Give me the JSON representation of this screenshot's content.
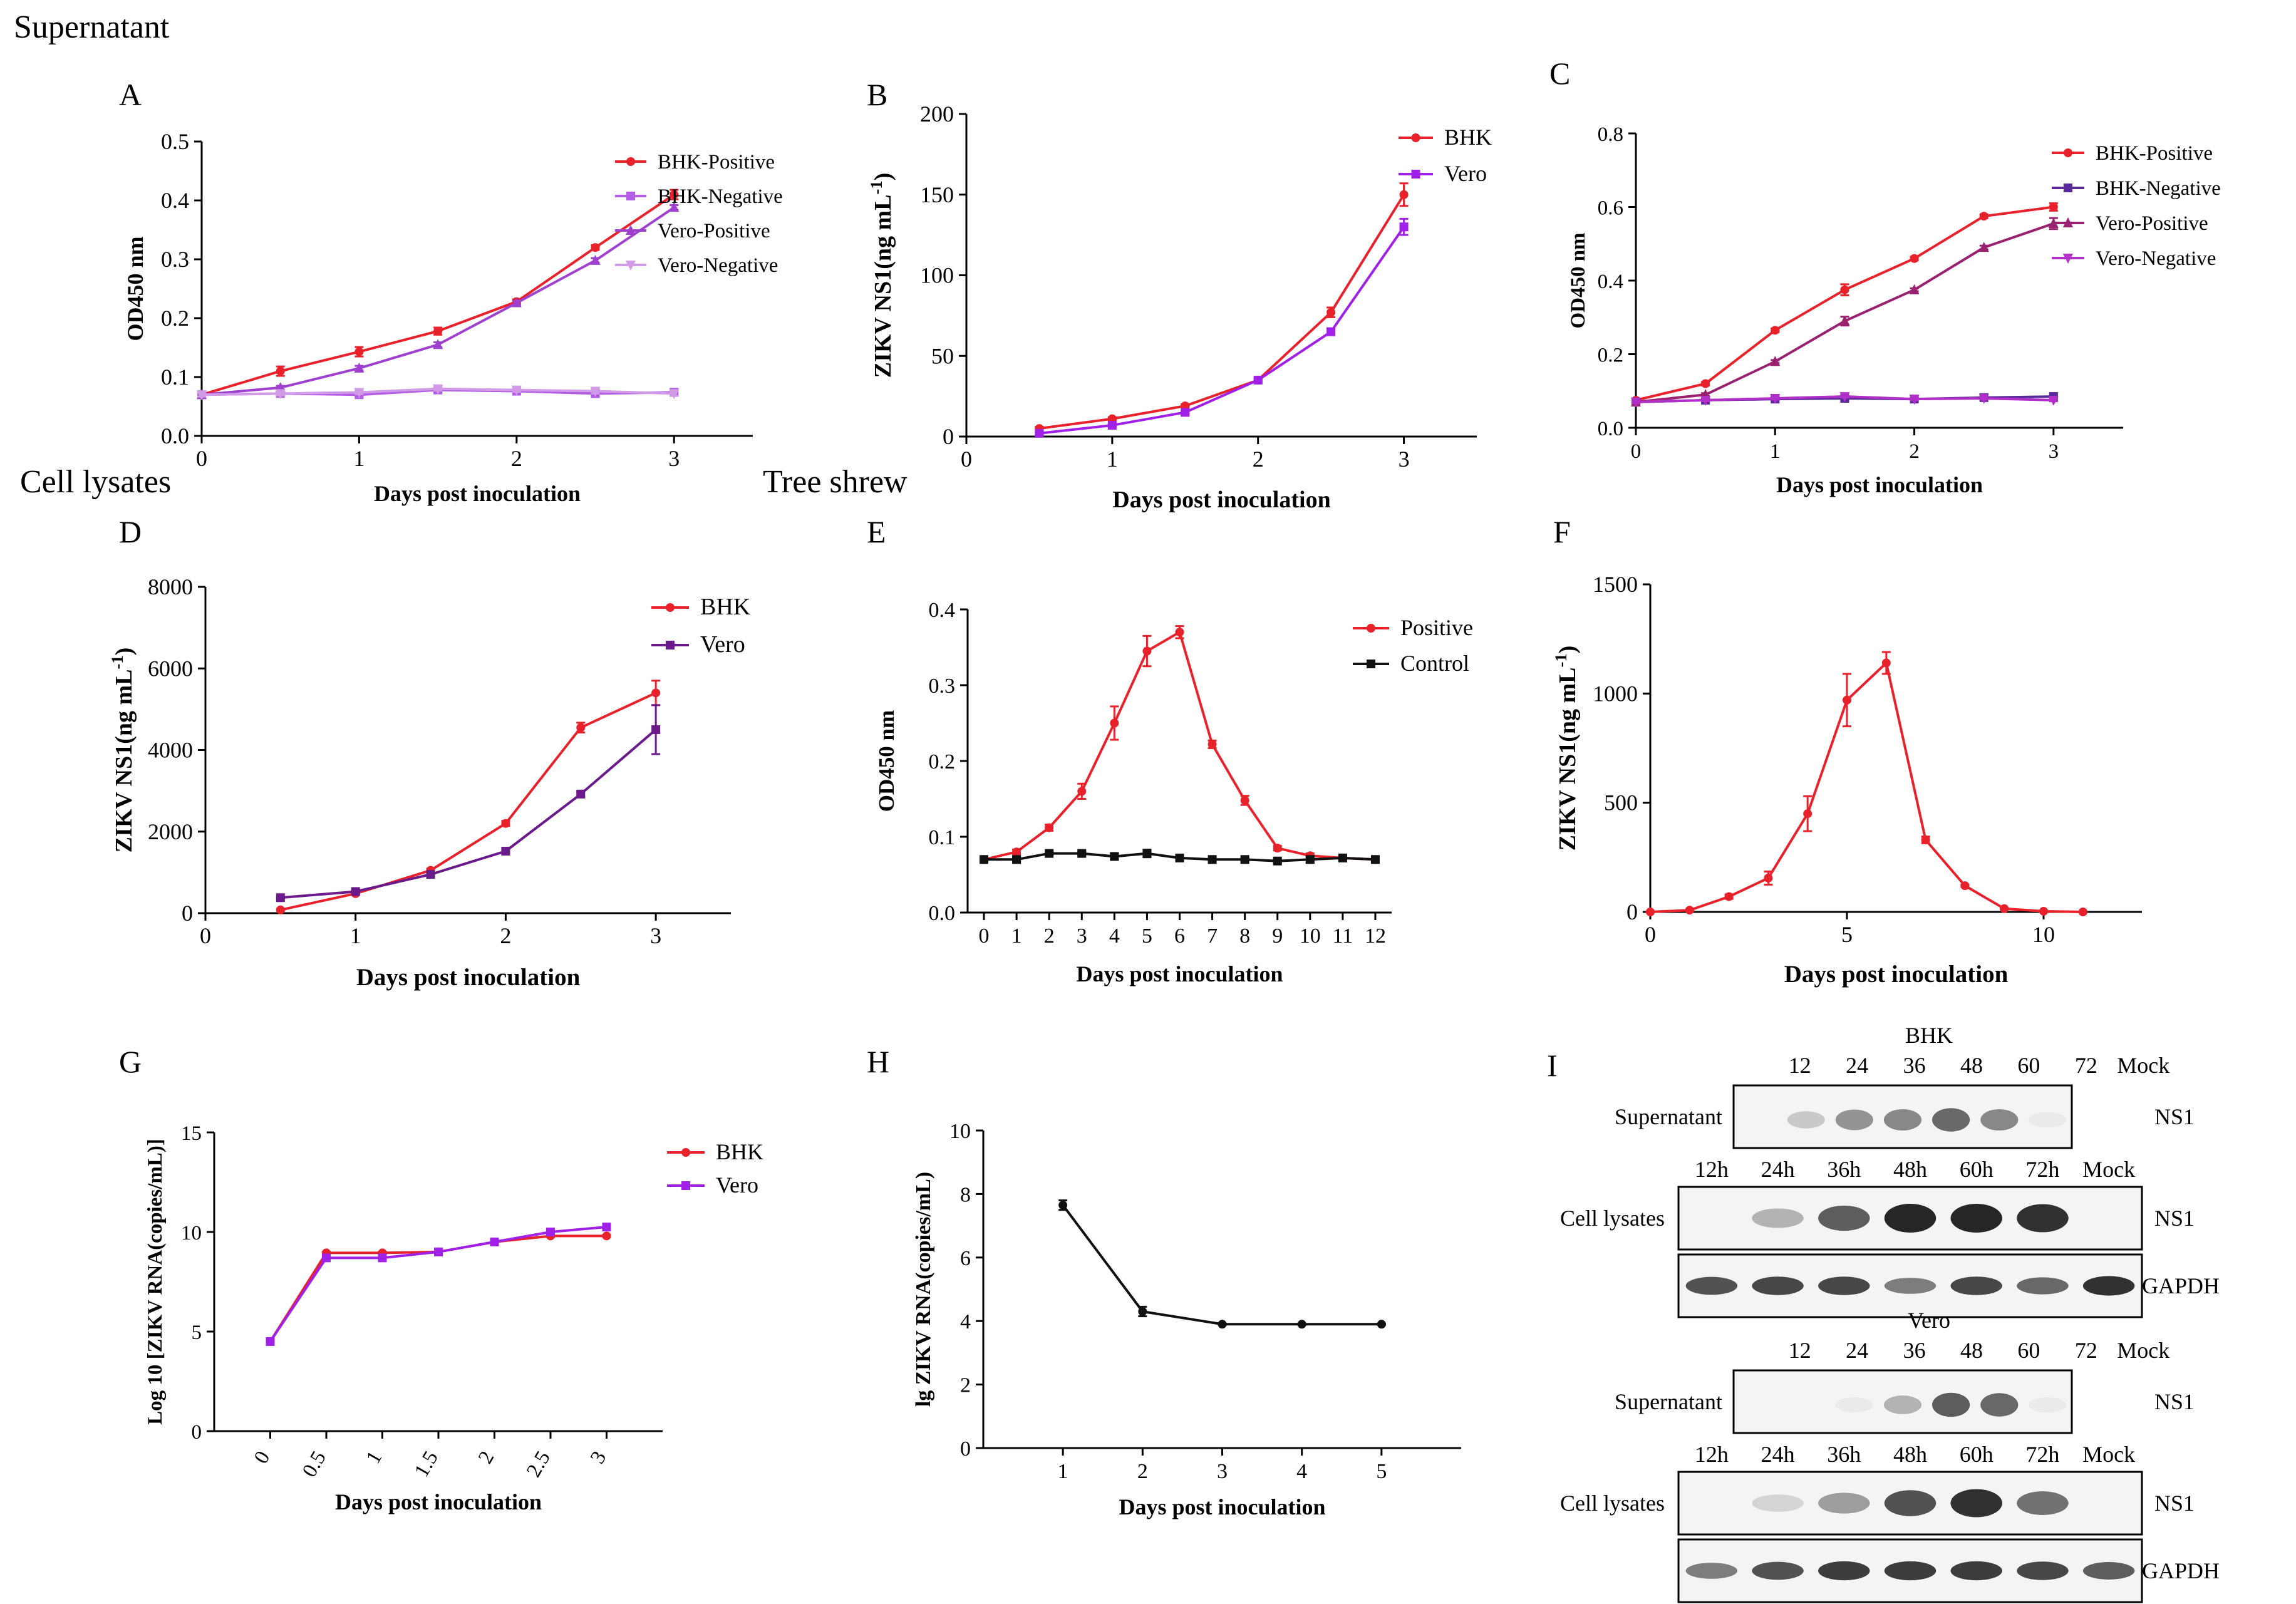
{
  "section_labels": {
    "supernatant": "Supernatant",
    "cell_lysates": "Cell lysates",
    "tree_shrew": "Tree shrew"
  },
  "chart_data": [
    {
      "id": "A",
      "panel": "A",
      "type": "line",
      "title": "",
      "xlabel": "Days post inoculation",
      "ylabel": "OD450 nm",
      "xlim": [
        0,
        3.5
      ],
      "ylim": [
        0,
        0.5
      ],
      "xticks": [
        0,
        1,
        2,
        3
      ],
      "xtick_labels": [
        "0",
        "1",
        "2",
        "3"
      ],
      "yticks": [
        0,
        0.1,
        0.2,
        0.3,
        0.4,
        0.5
      ],
      "ytick_labels": [
        "0.0",
        "0.1",
        "0.2",
        "0.3",
        "0.4",
        "0.5"
      ],
      "x": [
        0,
        0.5,
        1,
        1.5,
        2,
        2.5,
        3
      ],
      "series": [
        {
          "name": "BHK-Positive",
          "color": "#e8212b",
          "values": [
            0.07,
            0.11,
            0.143,
            0.178,
            0.228,
            0.32,
            0.41
          ],
          "errors": [
            0.005,
            0.008,
            0.008,
            0.006,
            0.004,
            0.004,
            0.008
          ]
        },
        {
          "name": "BHK-Negative",
          "color": "#b35ce6",
          "values": [
            0.07,
            0.072,
            0.07,
            0.078,
            0.076,
            0.072,
            0.074
          ],
          "errors": [
            0.003,
            0.003,
            0.003,
            0.004,
            0.003,
            0.006,
            0.006
          ]
        },
        {
          "name": "Vero-Positive",
          "color": "#a040d0",
          "values": [
            0.07,
            0.082,
            0.115,
            0.155,
            0.226,
            0.298,
            0.388
          ],
          "errors": [
            0.003,
            0.003,
            0.004,
            0.004,
            0.003,
            0.004,
            0.004
          ]
        },
        {
          "name": "Vero-Negative",
          "color": "#d19be8",
          "values": [
            0.07,
            0.072,
            0.074,
            0.08,
            0.078,
            0.076,
            0.072
          ],
          "errors": [
            0.003,
            0.003,
            0.003,
            0.003,
            0.003,
            0.004,
            0.004
          ]
        }
      ]
    },
    {
      "id": "B",
      "panel": "B",
      "type": "line",
      "title": "",
      "xlabel": "Days post inoculation",
      "ylabel": "ZIKV NS1(ng mL-1)",
      "xlim": [
        0,
        3.5
      ],
      "ylim": [
        0,
        200
      ],
      "xticks": [
        0,
        1,
        2,
        3
      ],
      "xtick_labels": [
        "0",
        "1",
        "2",
        "3"
      ],
      "yticks": [
        0,
        50,
        100,
        150,
        200
      ],
      "ytick_labels": [
        "0",
        "50",
        "100",
        "150",
        "200"
      ],
      "x": [
        0.5,
        1,
        1.5,
        2,
        2.5,
        3
      ],
      "series": [
        {
          "name": "BHK",
          "color": "#e8212b",
          "values": [
            5,
            11,
            19,
            35,
            77,
            150
          ],
          "errors": [
            1,
            1,
            1,
            1,
            3,
            7
          ]
        },
        {
          "name": "Vero",
          "color": "#a020e8",
          "values": [
            2,
            7,
            15,
            35,
            65,
            130
          ],
          "errors": [
            1,
            1,
            1,
            1,
            2,
            5
          ]
        }
      ]
    },
    {
      "id": "C",
      "panel": "C",
      "type": "line",
      "title": "",
      "xlabel": "Days post inoculation",
      "ylabel": "OD450 nm",
      "xlim": [
        0,
        3.5
      ],
      "ylim": [
        0,
        0.8
      ],
      "xticks": [
        0,
        1,
        2,
        3
      ],
      "xtick_labels": [
        "0",
        "1",
        "2",
        "3"
      ],
      "yticks": [
        0,
        0.2,
        0.4,
        0.6,
        0.8
      ],
      "ytick_labels": [
        "0.0",
        "0.2",
        "0.4",
        "0.6",
        "0.8"
      ],
      "x": [
        0,
        0.5,
        1,
        1.5,
        2,
        2.5,
        3
      ],
      "series": [
        {
          "name": "BHK-Positive",
          "color": "#e8212b",
          "values": [
            0.075,
            0.12,
            0.265,
            0.375,
            0.46,
            0.575,
            0.6
          ],
          "errors": [
            0.005,
            0.005,
            0.005,
            0.015,
            0.005,
            0.005,
            0.01
          ]
        },
        {
          "name": "BHK-Negative",
          "color": "#5a2a9a",
          "values": [
            0.07,
            0.075,
            0.078,
            0.08,
            0.078,
            0.082,
            0.085
          ],
          "errors": [
            0.003,
            0.003,
            0.003,
            0.003,
            0.003,
            0.003,
            0.003
          ]
        },
        {
          "name": "Vero-Positive",
          "color": "#9a2070",
          "values": [
            0.07,
            0.09,
            0.18,
            0.29,
            0.375,
            0.49,
            0.555
          ],
          "errors": [
            0.003,
            0.004,
            0.004,
            0.012,
            0.004,
            0.005,
            0.015
          ]
        },
        {
          "name": "Vero-Negative",
          "color": "#b030c8",
          "values": [
            0.07,
            0.075,
            0.08,
            0.085,
            0.078,
            0.08,
            0.075
          ],
          "errors": [
            0.003,
            0.003,
            0.003,
            0.003,
            0.003,
            0.003,
            0.003
          ]
        }
      ]
    },
    {
      "id": "D",
      "panel": "D",
      "type": "line",
      "title": "",
      "xlabel": "Days post inoculation",
      "ylabel": "ZIKV NS1(ng mL-1)",
      "xlim": [
        0,
        3.5
      ],
      "ylim": [
        0,
        8000
      ],
      "xticks": [
        0,
        1,
        2,
        3
      ],
      "xtick_labels": [
        "0",
        "1",
        "2",
        "3"
      ],
      "yticks": [
        0,
        2000,
        4000,
        6000,
        8000
      ],
      "ytick_labels": [
        "0",
        "2000",
        "4000",
        "6000",
        "8000"
      ],
      "x": [
        0.5,
        1,
        1.5,
        2,
        2.5,
        3
      ],
      "series": [
        {
          "name": "BHK",
          "color": "#e8212b",
          "values": [
            80,
            480,
            1050,
            2200,
            4550,
            5400
          ],
          "errors": [
            20,
            30,
            40,
            60,
            120,
            300
          ]
        },
        {
          "name": "Vero",
          "color": "#6a1a8a",
          "values": [
            380,
            530,
            950,
            1520,
            2920,
            4500
          ],
          "errors": [
            20,
            30,
            40,
            50,
            60,
            600
          ]
        }
      ]
    },
    {
      "id": "E",
      "panel": "E",
      "type": "line",
      "title": "",
      "xlabel": "Days post inoculation",
      "ylabel": "OD450 nm",
      "xlim": [
        -0.5,
        12.5
      ],
      "ylim": [
        0,
        0.4
      ],
      "xticks": [
        0,
        1,
        2,
        3,
        4,
        5,
        6,
        7,
        8,
        9,
        10,
        11,
        12
      ],
      "xtick_labels": [
        "0",
        "1",
        "2",
        "3",
        "4",
        "5",
        "6",
        "7",
        "8",
        "9",
        "10",
        "11",
        "12"
      ],
      "yticks": [
        0,
        0.1,
        0.2,
        0.3,
        0.4
      ],
      "ytick_labels": [
        "0.0",
        "0.1",
        "0.2",
        "0.3",
        "0.4"
      ],
      "x": [
        0,
        1,
        2,
        3,
        4,
        5,
        6,
        7,
        8,
        9,
        10,
        11,
        12
      ],
      "series": [
        {
          "name": "Positive",
          "color": "#e8212b",
          "values": [
            0.07,
            0.08,
            0.112,
            0.16,
            0.25,
            0.345,
            0.37,
            0.222,
            0.148,
            0.085,
            0.075,
            0.072,
            0.07
          ],
          "errors": [
            0.002,
            0.003,
            0.004,
            0.01,
            0.022,
            0.02,
            0.008,
            0.005,
            0.006,
            0.003,
            0.003,
            0.003,
            0.003
          ]
        },
        {
          "name": "Control",
          "color": "#111111",
          "values": [
            0.07,
            0.07,
            0.078,
            0.078,
            0.074,
            0.078,
            0.072,
            0.07,
            0.07,
            0.068,
            0.07,
            0.072,
            0.07
          ],
          "errors": [
            0.002,
            0.003,
            0.002,
            0.002,
            0.004,
            0.005,
            0.002,
            0.002,
            0.002,
            0.002,
            0.004,
            0.002,
            0.003
          ]
        }
      ]
    },
    {
      "id": "F",
      "panel": "F",
      "type": "line",
      "title": "",
      "xlabel": "Days post inoculation",
      "ylabel": "ZIKV NS1(ng mL-1)",
      "xlim": [
        0,
        12.5
      ],
      "ylim": [
        0,
        1500
      ],
      "xticks": [
        0,
        5,
        10
      ],
      "xtick_labels": [
        "0",
        "5",
        "10"
      ],
      "yticks": [
        0,
        500,
        1000,
        1500
      ],
      "ytick_labels": [
        "0",
        "500",
        "1000",
        "1500"
      ],
      "x": [
        0,
        1,
        2,
        3,
        4,
        5,
        6,
        7,
        8,
        9,
        10,
        11
      ],
      "series": [
        {
          "name": "NS1",
          "color": "#e8212b",
          "values": [
            0,
            8,
            70,
            155,
            450,
            970,
            1140,
            330,
            120,
            15,
            3,
            0
          ],
          "errors": [
            0,
            3,
            10,
            30,
            80,
            120,
            50,
            15,
            5,
            3,
            2,
            0
          ]
        }
      ]
    },
    {
      "id": "G",
      "panel": "G",
      "type": "line",
      "title": "",
      "xlabel": "Days post inoculation",
      "ylabel": "Log 10 [ZIKV RNA(copies/mL)]",
      "xlim": [
        -0.5,
        3.5
      ],
      "ylim": [
        0,
        15
      ],
      "xticks": [
        0,
        0.5,
        1,
        1.5,
        2,
        2.5,
        3
      ],
      "xtick_labels": [
        "0",
        "0.5",
        "1",
        "1.5",
        "2",
        "2.5",
        "3"
      ],
      "yticks": [
        0,
        5,
        10,
        15
      ],
      "ytick_labels": [
        "0",
        "5",
        "10",
        "15"
      ],
      "x": [
        0,
        0.5,
        1,
        1.5,
        2,
        2.5,
        3
      ],
      "series": [
        {
          "name": "BHK",
          "color": "#e8212b",
          "values": [
            4.5,
            8.95,
            8.95,
            9.0,
            9.5,
            9.8,
            9.8
          ],
          "errors": [
            0.05,
            0.05,
            0.05,
            0.05,
            0.05,
            0.05,
            0.05
          ]
        },
        {
          "name": "Vero",
          "color": "#a020e8",
          "values": [
            4.5,
            8.7,
            8.7,
            9.0,
            9.5,
            10.0,
            10.25
          ],
          "errors": [
            0.05,
            0.05,
            0.05,
            0.05,
            0.05,
            0.05,
            0.05
          ]
        }
      ]
    },
    {
      "id": "H",
      "panel": "H",
      "type": "line",
      "title": "",
      "xlabel": "Days post inoculation",
      "ylabel": "lg ZIKV RNA(copies/mL)",
      "xlim": [
        0,
        6
      ],
      "ylim": [
        0,
        10
      ],
      "xticks": [
        1,
        2,
        3,
        4,
        5
      ],
      "xtick_labels": [
        "1",
        "2",
        "3",
        "4",
        "5"
      ],
      "yticks": [
        0,
        2,
        4,
        6,
        8,
        10
      ],
      "ytick_labels": [
        "0",
        "2",
        "4",
        "6",
        "8",
        "10"
      ],
      "x": [
        1,
        2,
        3,
        4,
        5
      ],
      "series": [
        {
          "name": "lg ZIKV RNA",
          "color": "#111111",
          "values": [
            7.65,
            4.3,
            3.9,
            3.9,
            3.9
          ],
          "errors": [
            0.15,
            0.15,
            0.02,
            0.02,
            0.02
          ]
        }
      ]
    }
  ],
  "western_blot": {
    "panel": "I",
    "bhk": {
      "title": "BHK",
      "sup_lanes": [
        "12",
        "24",
        "36",
        "48",
        "60",
        "72",
        "Mock"
      ],
      "lys_lanes": [
        "12h",
        "24h",
        "36h",
        "48h",
        "60h",
        "72h",
        "Mock"
      ],
      "row_sup": "Supernatant",
      "row_lys": "Cell lysates",
      "ns1": "NS1",
      "ns1_b": "NS1",
      "gapdh": "GAPDH",
      "sup_intensity": [
        0.05,
        0.25,
        0.5,
        0.55,
        0.7,
        0.55,
        0.1
      ],
      "lys_intensity": [
        0.05,
        0.35,
        0.75,
        1.0,
        1.0,
        0.95,
        0.02
      ],
      "gapdh_intensity": [
        0.8,
        0.85,
        0.85,
        0.6,
        0.85,
        0.7,
        0.95
      ]
    },
    "vero": {
      "title": "Vero",
      "sup_lanes": [
        "12",
        "24",
        "36",
        "48",
        "60",
        "72",
        "Mock"
      ],
      "lys_lanes": [
        "12h",
        "24h",
        "36h",
        "48h",
        "60h",
        "72h",
        "Mock"
      ],
      "row_sup": "Supernatant",
      "row_lys": "Cell lysates",
      "ns1": "NS1",
      "ns1_b": "NS1",
      "gapdh": "GAPDH",
      "sup_intensity": [
        0.05,
        0.05,
        0.1,
        0.35,
        0.75,
        0.7,
        0.1
      ],
      "lys_intensity": [
        0.02,
        0.2,
        0.45,
        0.8,
        0.95,
        0.65,
        0.02
      ],
      "gapdh_intensity": [
        0.6,
        0.8,
        0.9,
        0.9,
        0.9,
        0.85,
        0.75
      ]
    }
  }
}
